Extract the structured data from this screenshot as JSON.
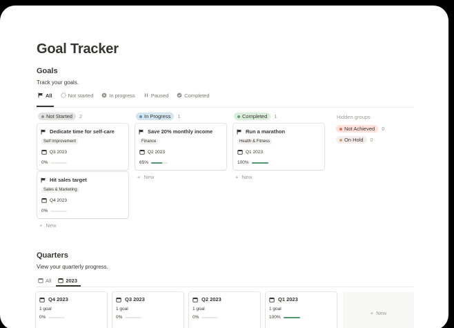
{
  "page": {
    "title": "Goal Tracker"
  },
  "goals": {
    "heading": "Goals",
    "subtitle": "Track your goals.",
    "tabs": [
      {
        "label": "All",
        "icon": "flag-icon",
        "active": true
      },
      {
        "label": "Not started",
        "icon": "circle-dashed-icon"
      },
      {
        "label": "In progress",
        "icon": "play-circle-icon"
      },
      {
        "label": "Paused",
        "icon": "pause-icon"
      },
      {
        "label": "Completed",
        "icon": "check-circle-icon"
      }
    ],
    "groups": [
      {
        "label": "Not Started",
        "count": "2",
        "color": "#e3e2e0",
        "dot": "#91918e",
        "cards": [
          {
            "title": "Dedicate time for self-care",
            "tag": "Self Improvement",
            "quarter": "Q3 2023",
            "progress_label": "0%",
            "progress": 0
          },
          {
            "title": "Hit sales target",
            "tag": "Sales & Marketing",
            "quarter": "Q4 2023",
            "progress_label": "0%",
            "progress": 0
          }
        ],
        "new_label": "New"
      },
      {
        "label": "In Progress",
        "count": "1",
        "color": "#d3e5ef",
        "dot": "#5b97bd",
        "cards": [
          {
            "title": "Save 20% monthly income",
            "tag": "Finance",
            "quarter": "Q2 2023",
            "progress_label": "65%",
            "progress": 0.65
          }
        ],
        "new_label": "New"
      },
      {
        "label": "Completed",
        "count": "1",
        "color": "#dbeddb",
        "dot": "#6c9b7d",
        "cards": [
          {
            "title": "Run a marathon",
            "tag": "Health & Fitness",
            "quarter": "Q1 2023",
            "progress_label": "100%",
            "progress": 1
          }
        ],
        "new_label": "New"
      }
    ],
    "hidden_groups": {
      "label": "Hidden groups",
      "items": [
        {
          "label": "Not Achieved",
          "count": "0",
          "color": "#ffe2dd",
          "dot": "#e16f64"
        },
        {
          "label": "On Hold",
          "count": "0",
          "color": "#f4eeee",
          "dot": "#c4a47c"
        }
      ]
    }
  },
  "quarters": {
    "heading": "Quarters",
    "subtitle": "View your quarterly progress.",
    "tabs": [
      {
        "label": "All",
        "icon": "calendar-icon"
      },
      {
        "label": "2023",
        "icon": "calendar-icon",
        "active": true
      }
    ],
    "cards": [
      {
        "title": "Q4 2023",
        "goals": "1 goal",
        "progress_label": "0%",
        "progress": 0
      },
      {
        "title": "Q3 2023",
        "goals": "1 goal",
        "progress_label": "0%",
        "progress": 0
      },
      {
        "title": "Q2 2023",
        "goals": "1 goal",
        "progress_label": "0%",
        "progress": 0
      },
      {
        "title": "Q1 2023",
        "goals": "1 goal",
        "progress_label": "100%",
        "progress": 1
      }
    ],
    "new_label": "New"
  }
}
